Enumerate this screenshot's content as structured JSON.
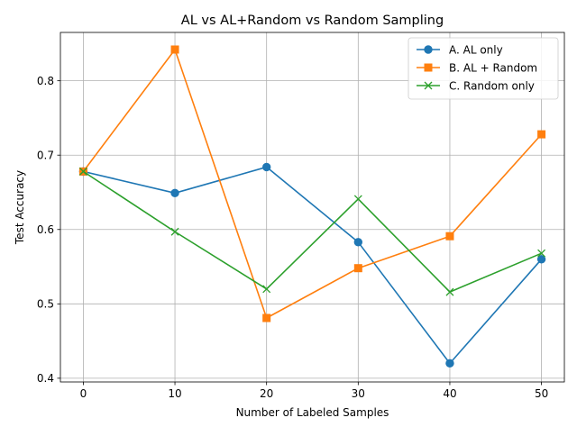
{
  "chart_data": {
    "type": "line",
    "title": "AL vs AL+Random vs Random Sampling",
    "xlabel": "Number of Labeled Samples",
    "ylabel": "Test Accuracy",
    "x": [
      0,
      10,
      20,
      30,
      40,
      50
    ],
    "xlim": [
      -2.5,
      52.5
    ],
    "ylim": [
      0.395,
      0.865
    ],
    "xticks": [
      0,
      10,
      20,
      30,
      40,
      50
    ],
    "yticks": [
      0.4,
      0.5,
      0.6,
      0.7,
      0.8
    ],
    "grid": true,
    "legend_position": "top-right",
    "series": [
      {
        "name": "A. AL only",
        "color": "#1f77b4",
        "marker": "circle",
        "values": [
          0.678,
          0.649,
          0.684,
          0.583,
          0.42,
          0.56
        ]
      },
      {
        "name": "B. AL + Random",
        "color": "#ff7f0e",
        "marker": "square",
        "values": [
          0.678,
          0.842,
          0.481,
          0.548,
          0.591,
          0.728
        ]
      },
      {
        "name": "C. Random only",
        "color": "#2ca02c",
        "marker": "x",
        "values": [
          0.678,
          0.597,
          0.52,
          0.641,
          0.516,
          0.568
        ]
      }
    ]
  }
}
